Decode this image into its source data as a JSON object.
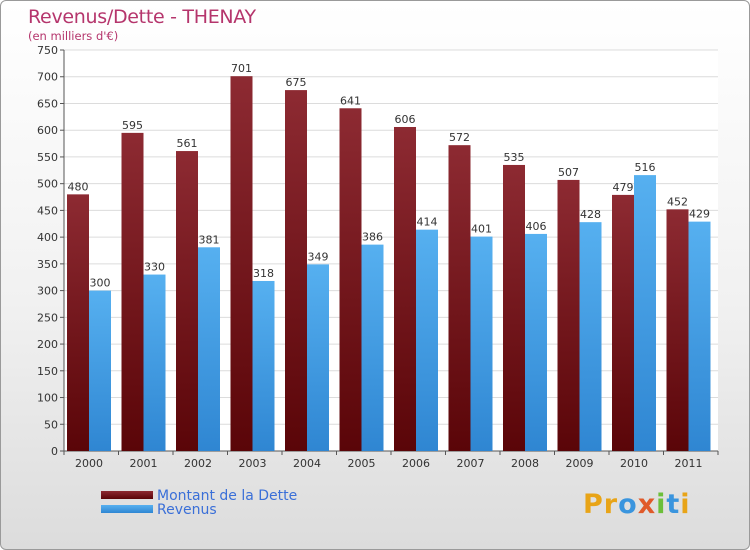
{
  "title": "Revenus/Dette - THENAY",
  "subtitle": "(en milliers d'€)",
  "colors": {
    "debt": "#7a1a22",
    "revenue": "#4aa3ea",
    "title": "#b5356c"
  },
  "legend": [
    {
      "label": "Montant de la Dette",
      "color": "#6b0d12"
    },
    {
      "label": "Revenus",
      "color": "#3a95de"
    }
  ],
  "logo": {
    "text": "Proxiti",
    "letters": [
      {
        "ch": "P",
        "color": "#e8a417"
      },
      {
        "ch": "r",
        "color": "#e8a417"
      },
      {
        "ch": "o",
        "color": "#3a95de"
      },
      {
        "ch": "x",
        "color": "#e05a2a"
      },
      {
        "ch": "i",
        "color": "#6cbf3a"
      },
      {
        "ch": "t",
        "color": "#3a95de"
      },
      {
        "ch": "i",
        "color": "#e8a417"
      }
    ]
  },
  "chart_data": {
    "type": "bar",
    "categories": [
      "2000",
      "2001",
      "2002",
      "2003",
      "2004",
      "2005",
      "2006",
      "2007",
      "2008",
      "2009",
      "2010",
      "2011"
    ],
    "series": [
      {
        "name": "Montant de la Dette",
        "values": [
          480,
          595,
          561,
          701,
          675,
          641,
          606,
          572,
          535,
          507,
          479,
          452
        ]
      },
      {
        "name": "Revenus",
        "values": [
          300,
          330,
          381,
          318,
          349,
          386,
          414,
          401,
          406,
          428,
          516,
          429
        ]
      }
    ],
    "ylim": [
      0,
      750
    ],
    "yticks": [
      0,
      50,
      100,
      150,
      200,
      250,
      300,
      350,
      400,
      450,
      500,
      550,
      600,
      650,
      700,
      750
    ],
    "grid": true,
    "legend_position": "bottom-left"
  }
}
